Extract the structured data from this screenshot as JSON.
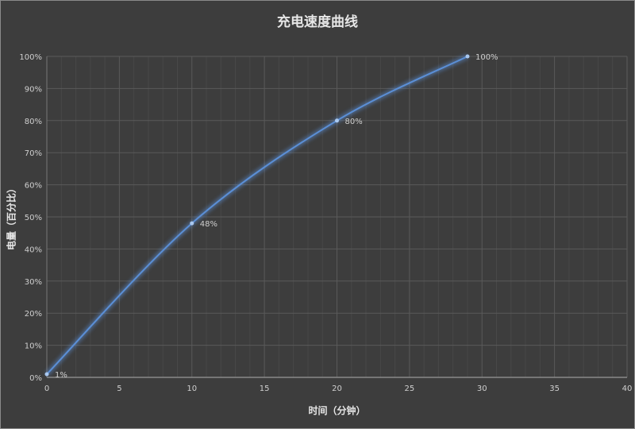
{
  "chart_data": {
    "type": "line",
    "title": "充电速度曲线",
    "xlabel": "时间（分钟）",
    "ylabel": "电量（百分比）",
    "x": [
      0,
      10,
      20,
      29
    ],
    "series": [
      {
        "values": [
          1,
          48,
          80,
          100
        ]
      }
    ],
    "data_labels": [
      "1%",
      "48%",
      "80%",
      "100%"
    ],
    "xlim": [
      0,
      40
    ],
    "ylim": [
      0,
      100
    ],
    "x_ticks": [
      "0",
      "5",
      "10",
      "15",
      "20",
      "25",
      "30",
      "35",
      "40"
    ],
    "y_ticks": [
      "0%",
      "10%",
      "20%",
      "30%",
      "40%",
      "50%",
      "60%",
      "70%",
      "80%",
      "90%",
      "100%"
    ],
    "grid": true,
    "smooth": true,
    "colors": {
      "line": "#5b8fd6",
      "background": "#3d3d3d",
      "grid": "#5a5a5a",
      "text": "#cfcfcf"
    }
  }
}
